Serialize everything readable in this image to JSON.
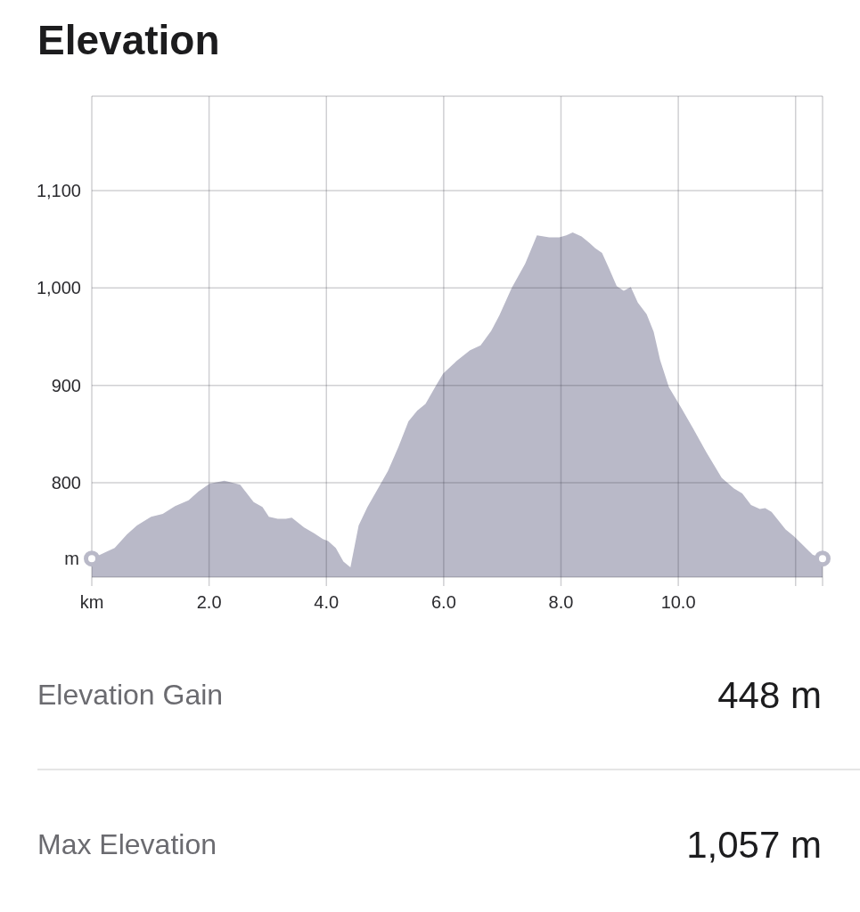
{
  "chart_data": {
    "type": "area",
    "title": "Elevation",
    "xlabel": "km",
    "ylabel": "m",
    "xlim": [
      0,
      12.46
    ],
    "ylim": [
      703,
      1197
    ],
    "xticks": [
      {
        "value": 0,
        "label": null
      },
      {
        "value": 2,
        "label": "2.0"
      },
      {
        "value": 4,
        "label": "4.0"
      },
      {
        "value": 6,
        "label": "6.0"
      },
      {
        "value": 8,
        "label": "8.0"
      },
      {
        "value": 10,
        "label": "10.0"
      },
      {
        "value": 12,
        "label": null
      }
    ],
    "yticks": [
      800,
      900,
      {
        "value": 1000,
        "label": "1,000"
      },
      {
        "value": 1100,
        "label": "1,100"
      }
    ],
    "grid": true,
    "series": [
      {
        "color": "#b9b9c8",
        "x": [
          0,
          0.25,
          0.39,
          0.6,
          0.77,
          1.01,
          1.21,
          1.42,
          1.65,
          1.82,
          2.01,
          2.26,
          2.53,
          2.76,
          2.91,
          3.02,
          3.17,
          3.31,
          3.41,
          3.62,
          3.79,
          3.94,
          4.03,
          4.16,
          4.29,
          4.41,
          4.55,
          4.7,
          4.88,
          5.05,
          5.23,
          5.4,
          5.55,
          5.69,
          5.87,
          5.99,
          6.22,
          6.45,
          6.63,
          6.81,
          6.95,
          7.16,
          7.39,
          7.59,
          7.8,
          7.97,
          8.09,
          8.2,
          8.35,
          8.49,
          8.58,
          8.7,
          8.82,
          8.95,
          9.07,
          9.19,
          9.31,
          9.46,
          9.58,
          9.69,
          9.84,
          10.01,
          10.25,
          10.48,
          10.74,
          10.95,
          11.09,
          11.24,
          11.39,
          11.48,
          11.59,
          11.83,
          11.97,
          12.29,
          12.46
        ],
        "values": [
          722,
          729,
          733,
          747,
          756,
          765,
          768,
          776,
          782,
          791,
          799,
          802,
          798,
          780,
          775,
          765,
          763,
          763,
          764,
          754,
          748,
          742,
          740,
          733,
          719,
          713,
          756,
          775,
          794,
          812,
          837,
          863,
          874,
          881,
          900,
          912,
          925,
          936,
          941,
          956,
          972,
          1000,
          1025,
          1054,
          1052,
          1052,
          1054,
          1057,
          1053,
          1046,
          1041,
          1036,
          1020,
          1002,
          997,
          1001,
          985,
          973,
          955,
          926,
          898,
          881,
          856,
          831,
          805,
          794,
          789,
          777,
          773,
          774,
          770,
          752,
          745,
          726,
          722
        ]
      },
      {
        "type": "scatter",
        "color": "#b9b9c8",
        "marker": "circle",
        "x": [
          0,
          12.46
        ],
        "values": [
          722,
          722
        ]
      }
    ],
    "annotations": [
      "Elevation Gain",
      "448 m",
      "Max Elevation",
      "1,057 m"
    ]
  }
}
